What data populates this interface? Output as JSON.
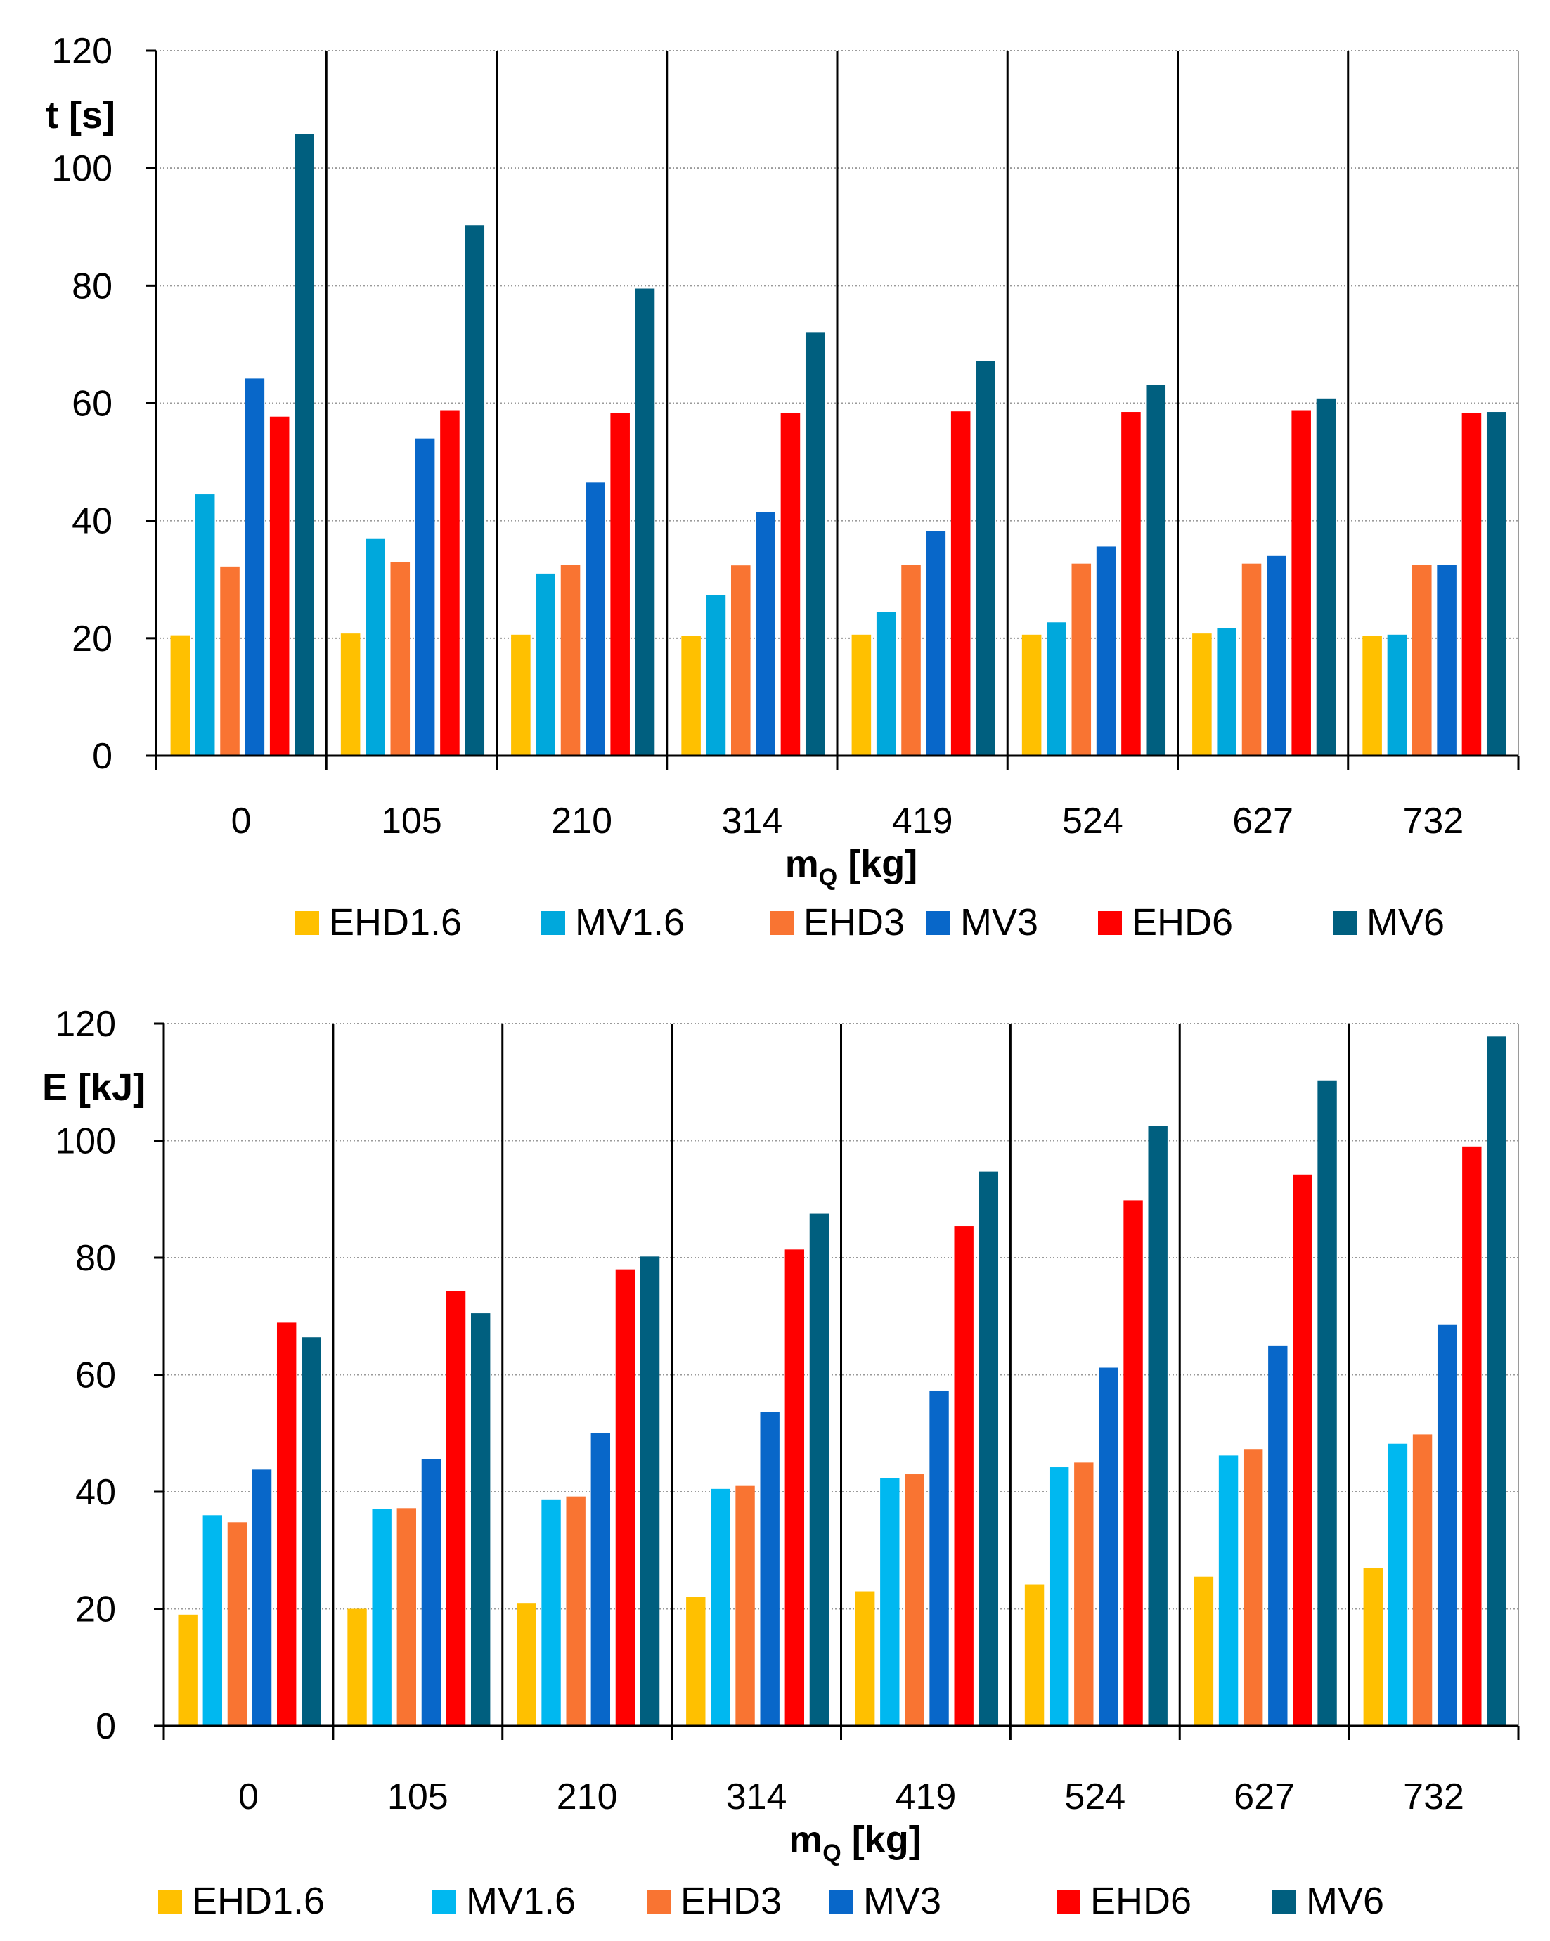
{
  "chart_data": [
    {
      "type": "bar",
      "ylabel": "t [s]",
      "xlabel_main": "m",
      "xlabel_sub": "Q",
      "xlabel_unit": " [kg]",
      "ylim": [
        0,
        120
      ],
      "yticks": [
        0,
        20,
        40,
        60,
        80,
        100,
        120
      ],
      "grid": true,
      "legend_position": "bottom",
      "categories": [
        "0",
        "105",
        "210",
        "314",
        "419",
        "524",
        "627",
        "732"
      ],
      "series": [
        {
          "name": "EHD1.6",
          "color": "#FFC000",
          "values": [
            20.5,
            20.8,
            20.6,
            20.4,
            20.6,
            20.6,
            20.8,
            20.4
          ]
        },
        {
          "name": "MV1.6",
          "color": "#00A8DC",
          "values": [
            44.5,
            37.0,
            31.0,
            27.3,
            24.5,
            22.7,
            21.7,
            20.6
          ]
        },
        {
          "name": "EHD3",
          "color": "#F97432",
          "values": [
            32.2,
            33.0,
            32.5,
            32.4,
            32.5,
            32.7,
            32.7,
            32.5
          ]
        },
        {
          "name": "MV3",
          "color": "#0867C9",
          "values": [
            64.2,
            54.0,
            46.5,
            41.5,
            38.2,
            35.6,
            34.0,
            32.5
          ]
        },
        {
          "name": "EHD6",
          "color": "#FF0000",
          "values": [
            57.7,
            58.8,
            58.3,
            58.3,
            58.6,
            58.5,
            58.8,
            58.3
          ]
        },
        {
          "name": "MV6",
          "color": "#005F7F",
          "values": [
            105.8,
            90.3,
            79.5,
            72.1,
            67.2,
            63.1,
            60.8,
            58.5
          ]
        }
      ]
    },
    {
      "type": "bar",
      "ylabel": "E [kJ]",
      "xlabel_main": "m",
      "xlabel_sub": "Q",
      "xlabel_unit": " [kg]",
      "ylim": [
        0,
        120
      ],
      "yticks": [
        0,
        20,
        40,
        60,
        80,
        100,
        120
      ],
      "grid": true,
      "legend_position": "bottom",
      "categories": [
        "0",
        "105",
        "210",
        "314",
        "419",
        "524",
        "627",
        "732"
      ],
      "series": [
        {
          "name": "EHD1.6",
          "color": "#FFC000",
          "values": [
            19.0,
            20.0,
            21.0,
            22.0,
            23.0,
            24.2,
            25.5,
            27.0
          ]
        },
        {
          "name": "MV1.6",
          "color": "#00B8F0",
          "values": [
            36.0,
            37.0,
            38.7,
            40.5,
            42.3,
            44.2,
            46.2,
            48.2
          ]
        },
        {
          "name": "EHD3",
          "color": "#F97432",
          "values": [
            34.8,
            37.2,
            39.2,
            41.0,
            43.0,
            45.0,
            47.3,
            49.8
          ]
        },
        {
          "name": "MV3",
          "color": "#0867C9",
          "values": [
            43.8,
            45.6,
            50.0,
            53.6,
            57.3,
            61.2,
            65.0,
            68.5
          ]
        },
        {
          "name": "EHD6",
          "color": "#FF0000",
          "values": [
            68.9,
            74.3,
            78.0,
            81.4,
            85.4,
            89.8,
            94.2,
            99.0
          ]
        },
        {
          "name": "MV6",
          "color": "#005F7F",
          "values": [
            66.4,
            70.5,
            80.2,
            87.5,
            94.7,
            102.5,
            110.3,
            117.8
          ]
        }
      ]
    }
  ]
}
